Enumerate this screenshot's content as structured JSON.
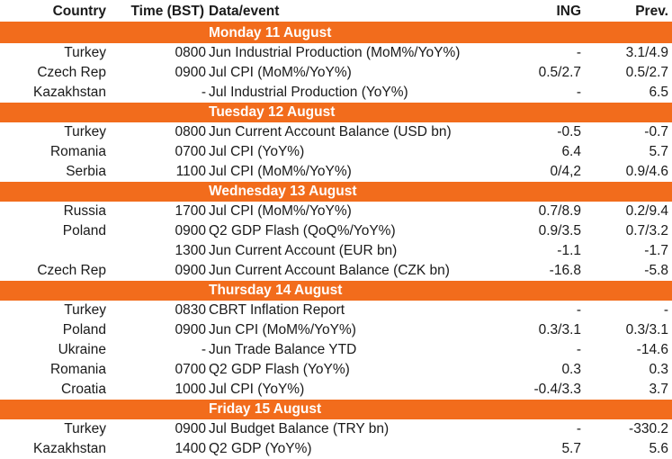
{
  "headers": {
    "country": "Country",
    "time": "Time (BST)",
    "event": "Data/event",
    "ing": "ING",
    "prev": "Prev."
  },
  "sections": [
    {
      "day": "Monday 11 August",
      "rows": [
        {
          "country": "Turkey",
          "time": "0800",
          "event": "Jun Industrial Production (MoM%/YoY%)",
          "ing": "-",
          "prev": "3.1/4.9"
        },
        {
          "country": "Czech Rep",
          "time": "0900",
          "event": "Jul CPI (MoM%/YoY%)",
          "ing": "0.5/2.7",
          "prev": "0.5/2.7"
        },
        {
          "country": "Kazakhstan",
          "time": "-",
          "event": "Jul Industrial Production (YoY%)",
          "ing": "-",
          "prev": "6.5"
        }
      ]
    },
    {
      "day": "Tuesday 12 August",
      "rows": [
        {
          "country": "Turkey",
          "time": "0800",
          "event": "Jun Current Account Balance (USD bn)",
          "ing": "-0.5",
          "prev": "-0.7"
        },
        {
          "country": "Romania",
          "time": "0700",
          "event": "Jul CPI (YoY%)",
          "ing": "6.4",
          "prev": "5.7"
        },
        {
          "country": "Serbia",
          "time": "1100",
          "event": "Jul CPI (MoM%/YoY%)",
          "ing": "0/4,2",
          "prev": "0.9/4.6"
        }
      ]
    },
    {
      "day": "Wednesday 13 August",
      "rows": [
        {
          "country": "Russia",
          "time": "1700",
          "event": "Jul CPI (MoM%/YoY%)",
          "ing": "0.7/8.9",
          "prev": "0.2/9.4"
        },
        {
          "country": "Poland",
          "time": "0900",
          "event": "Q2 GDP Flash (QoQ%/YoY%)",
          "ing": "0.9/3.5",
          "prev": "0.7/3.2"
        },
        {
          "country": "",
          "time": "1300",
          "event": "Jun Current Account (EUR bn)",
          "ing": "-1.1",
          "prev": "-1.7"
        },
        {
          "country": "Czech Rep",
          "time": "0900",
          "event": "Jun Current Account Balance (CZK bn)",
          "ing": "-16.8",
          "prev": "-5.8"
        }
      ]
    },
    {
      "day": "Thursday 14 August",
      "rows": [
        {
          "country": "Turkey",
          "time": "0830",
          "event": "CBRT Inflation Report",
          "ing": "-",
          "prev": "-"
        },
        {
          "country": "Poland",
          "time": "0900",
          "event": "Jun CPI (MoM%/YoY%)",
          "ing": "0.3/3.1",
          "prev": "0.3/3.1"
        },
        {
          "country": "Ukraine",
          "time": "-",
          "event": "Jun Trade Balance YTD",
          "ing": "-",
          "prev": "-14.6"
        },
        {
          "country": "Romania",
          "time": "0700",
          "event": "Q2 GDP Flash (YoY%)",
          "ing": "0.3",
          "prev": "0.3"
        },
        {
          "country": "Croatia",
          "time": "1000",
          "event": "Jul CPI (YoY%)",
          "ing": "-0.4/3.3",
          "prev": "3.7"
        }
      ]
    },
    {
      "day": "Friday 15 August",
      "rows": [
        {
          "country": "Turkey",
          "time": "0900",
          "event": "Jul Budget Balance (TRY bn)",
          "ing": "-",
          "prev": "-330.2"
        },
        {
          "country": "Kazakhstan",
          "time": "1400",
          "event": "Q2 GDP (YoY%)",
          "ing": "5.7",
          "prev": "5.6"
        }
      ]
    }
  ]
}
